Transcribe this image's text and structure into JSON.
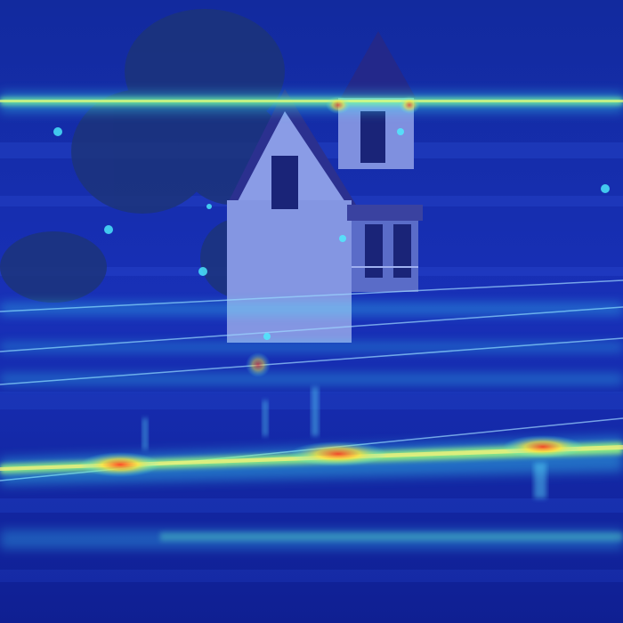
{
  "image": {
    "kind": "heatmap-overlay-photo",
    "subject": "house-with-power-lines",
    "colors": {
      "base": "#1428b8",
      "deep": "#0a158a",
      "glow_cyan": "#3df0ff",
      "glow_green": "#7dff9a",
      "glow_yellow": "#ffe23a",
      "glow_red": "#ff3a1e",
      "house_wall": "#8fa0e8",
      "house_roof": "#2a2f8a",
      "tree": "#1f3a7a"
    },
    "hotspots": [
      {
        "intensity": 1.0
      },
      {
        "intensity": 0.95
      },
      {
        "intensity": 0.9
      },
      {
        "intensity": 0.85
      },
      {
        "intensity": 0.6
      }
    ]
  }
}
